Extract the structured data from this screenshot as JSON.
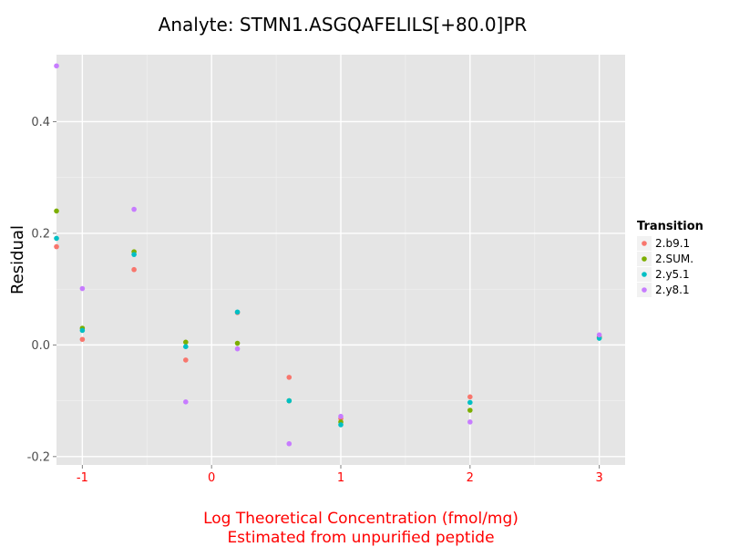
{
  "chart_data": {
    "type": "scatter",
    "title": "Analyte: STMN1.ASGQAFELILS[+80.0]PR",
    "xlabel_line1": "Log Theoretical Concentration (fmol/mg)",
    "xlabel_line2": "Estimated from unpurified peptide",
    "ylabel": "Residual",
    "xlim": [
      -1.2,
      3.2
    ],
    "ylim": [
      -0.215,
      0.52
    ],
    "x_ticks": [
      -1,
      0,
      1,
      2,
      3
    ],
    "x_tick_labels": [
      "-1",
      "0",
      "1",
      "2",
      "3"
    ],
    "y_ticks": [
      -0.2,
      0.0,
      0.2,
      0.4
    ],
    "y_tick_labels": [
      "-0.2",
      "0.0",
      "0.2",
      "0.4"
    ],
    "grid": true,
    "legend": {
      "title": "Transition",
      "position": "right"
    },
    "series": [
      {
        "name": "2.b9.1",
        "color": "#F8766D",
        "x": [
          -1.2,
          -1.0,
          -0.6,
          -0.2,
          0.2,
          0.6,
          1.0,
          2.0,
          3.0
        ],
        "y": [
          0.176,
          0.01,
          0.135,
          -0.027,
          0.058,
          -0.058,
          -0.132,
          -0.093,
          0.015
        ]
      },
      {
        "name": "2.SUM.",
        "color": "#7CAE00",
        "x": [
          -1.2,
          -1.0,
          -0.6,
          -0.2,
          0.2,
          0.6,
          1.0,
          2.0,
          3.0
        ],
        "y": [
          0.24,
          0.03,
          0.167,
          0.005,
          0.003,
          -0.1,
          -0.138,
          -0.117,
          0.013
        ]
      },
      {
        "name": "2.y5.1",
        "color": "#00BFC4",
        "x": [
          -1.2,
          -1.0,
          -0.6,
          -0.2,
          0.2,
          0.6,
          1.0,
          2.0,
          3.0
        ],
        "y": [
          0.191,
          0.026,
          0.162,
          -0.003,
          0.059,
          -0.1,
          -0.143,
          -0.103,
          0.012
        ]
      },
      {
        "name": "2.y8.1",
        "color": "#C77CFF",
        "x": [
          -1.2,
          -1.0,
          -0.6,
          -0.2,
          0.2,
          0.6,
          1.0,
          2.0,
          3.0
        ],
        "y": [
          0.5,
          0.101,
          0.243,
          -0.102,
          -0.007,
          -0.177,
          -0.128,
          -0.138,
          0.018
        ]
      }
    ]
  }
}
